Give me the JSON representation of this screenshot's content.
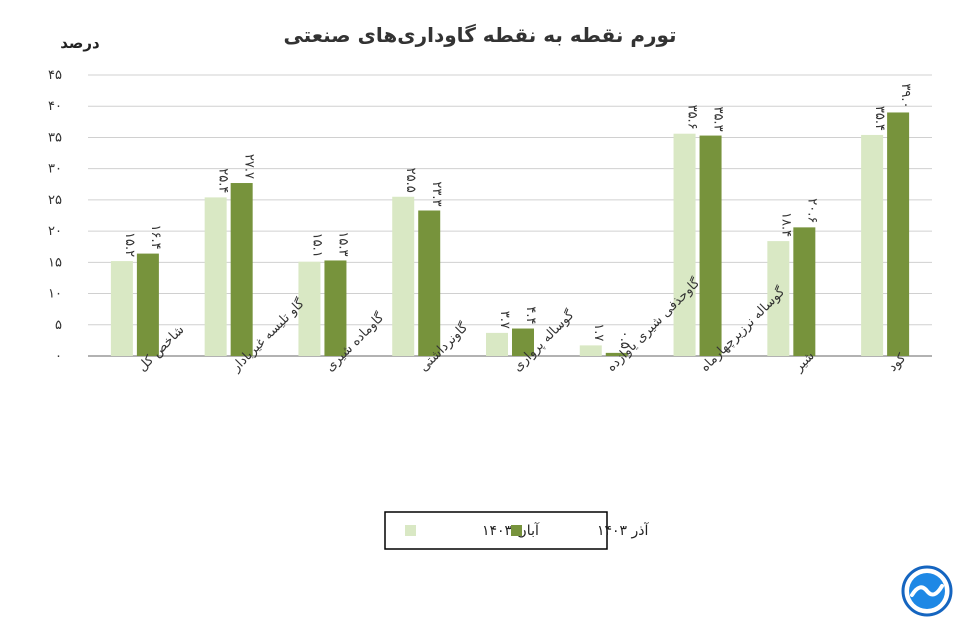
{
  "chart_data": {
    "type": "bar",
    "title": "تورم نقطه به نقطه گاوداری‌های صنعتی",
    "ylabel": "درصد",
    "xlabel": "",
    "ylim": [
      0,
      45
    ],
    "yticks": [
      0,
      5,
      10,
      15,
      20,
      25,
      30,
      35,
      40,
      45
    ],
    "ytick_labels": [
      "۰",
      "۵",
      "۱۰",
      "۱۵",
      "۲۰",
      "۲۵",
      "۳۰",
      "۳۵",
      "۴۰",
      "۴۵"
    ],
    "grid": true,
    "legend_position": "bottom",
    "categories": [
      "شاخص کل",
      "گاو تلیسه غیربادار",
      "گاوماده شیری",
      "گاونرداشتی",
      "گوساله پرواری",
      "گاوحذفی شیری یاوازده",
      "گوساله نرزیرچهارماه",
      "شیر",
      "کود"
    ],
    "series": [
      {
        "name": "آبان ۱۴۰۳",
        "color": "#d9e8c4",
        "values": [
          15.2,
          25.4,
          15.1,
          25.5,
          3.7,
          1.7,
          35.6,
          18.4,
          35.4
        ],
        "labels": [
          "۱۵.۲",
          "۲۵.۴",
          "۱۵.۱",
          "۲۵.۵",
          "۳.۷",
          "۱.۷",
          "۳۵.۶",
          "۱۸.۴",
          "۳۵.۴"
        ]
      },
      {
        "name": "آذر ۱۴۰۳",
        "color": "#77933c",
        "values": [
          16.4,
          27.7,
          15.3,
          23.3,
          4.4,
          0.5,
          35.3,
          20.6,
          39.0
        ],
        "labels": [
          "۱۶.۴",
          "۲۷.۷",
          "۱۵.۳",
          "۲۳.۳",
          "۴.۴",
          "۰.۵",
          "۳۵.۳",
          "۲۰.۶",
          "۳۹.۰"
        ]
      }
    ]
  },
  "logo": {
    "name": "logo-icon",
    "color": "#1e88e5"
  }
}
